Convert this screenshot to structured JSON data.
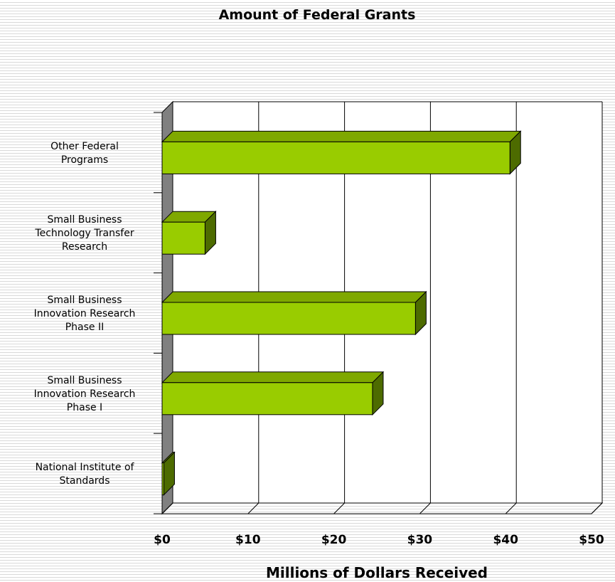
{
  "chart_data": {
    "type": "bar",
    "orientation": "horizontal",
    "title": "Amount of Federal Grants",
    "xlabel": "Millions of Dollars Received",
    "ylabel": "",
    "xlim": [
      0,
      50
    ],
    "x_ticks": [
      "$0",
      "$10",
      "$20",
      "$30",
      "$40",
      "$50"
    ],
    "x_tick_values": [
      0,
      10,
      20,
      30,
      40,
      50
    ],
    "grid": "vertical",
    "legend": "none",
    "categories": [
      [
        "Other Federal",
        "Programs"
      ],
      [
        "Small Business",
        "Technology Transfer",
        "Research"
      ],
      [
        "Small Business",
        "Innovation Research",
        "Phase II"
      ],
      [
        "Small Business",
        "Innovation Research",
        "Phase I"
      ],
      [
        "National Institute of",
        "Standards"
      ]
    ],
    "values": [
      40.5,
      5,
      29.5,
      24.5,
      0.2
    ],
    "colors": {
      "bar_front": "#99cc00",
      "bar_top": "#7fa800",
      "bar_side": "#4d6b00",
      "wall": "#808080",
      "background_stripe": "#d9d9d9"
    }
  }
}
